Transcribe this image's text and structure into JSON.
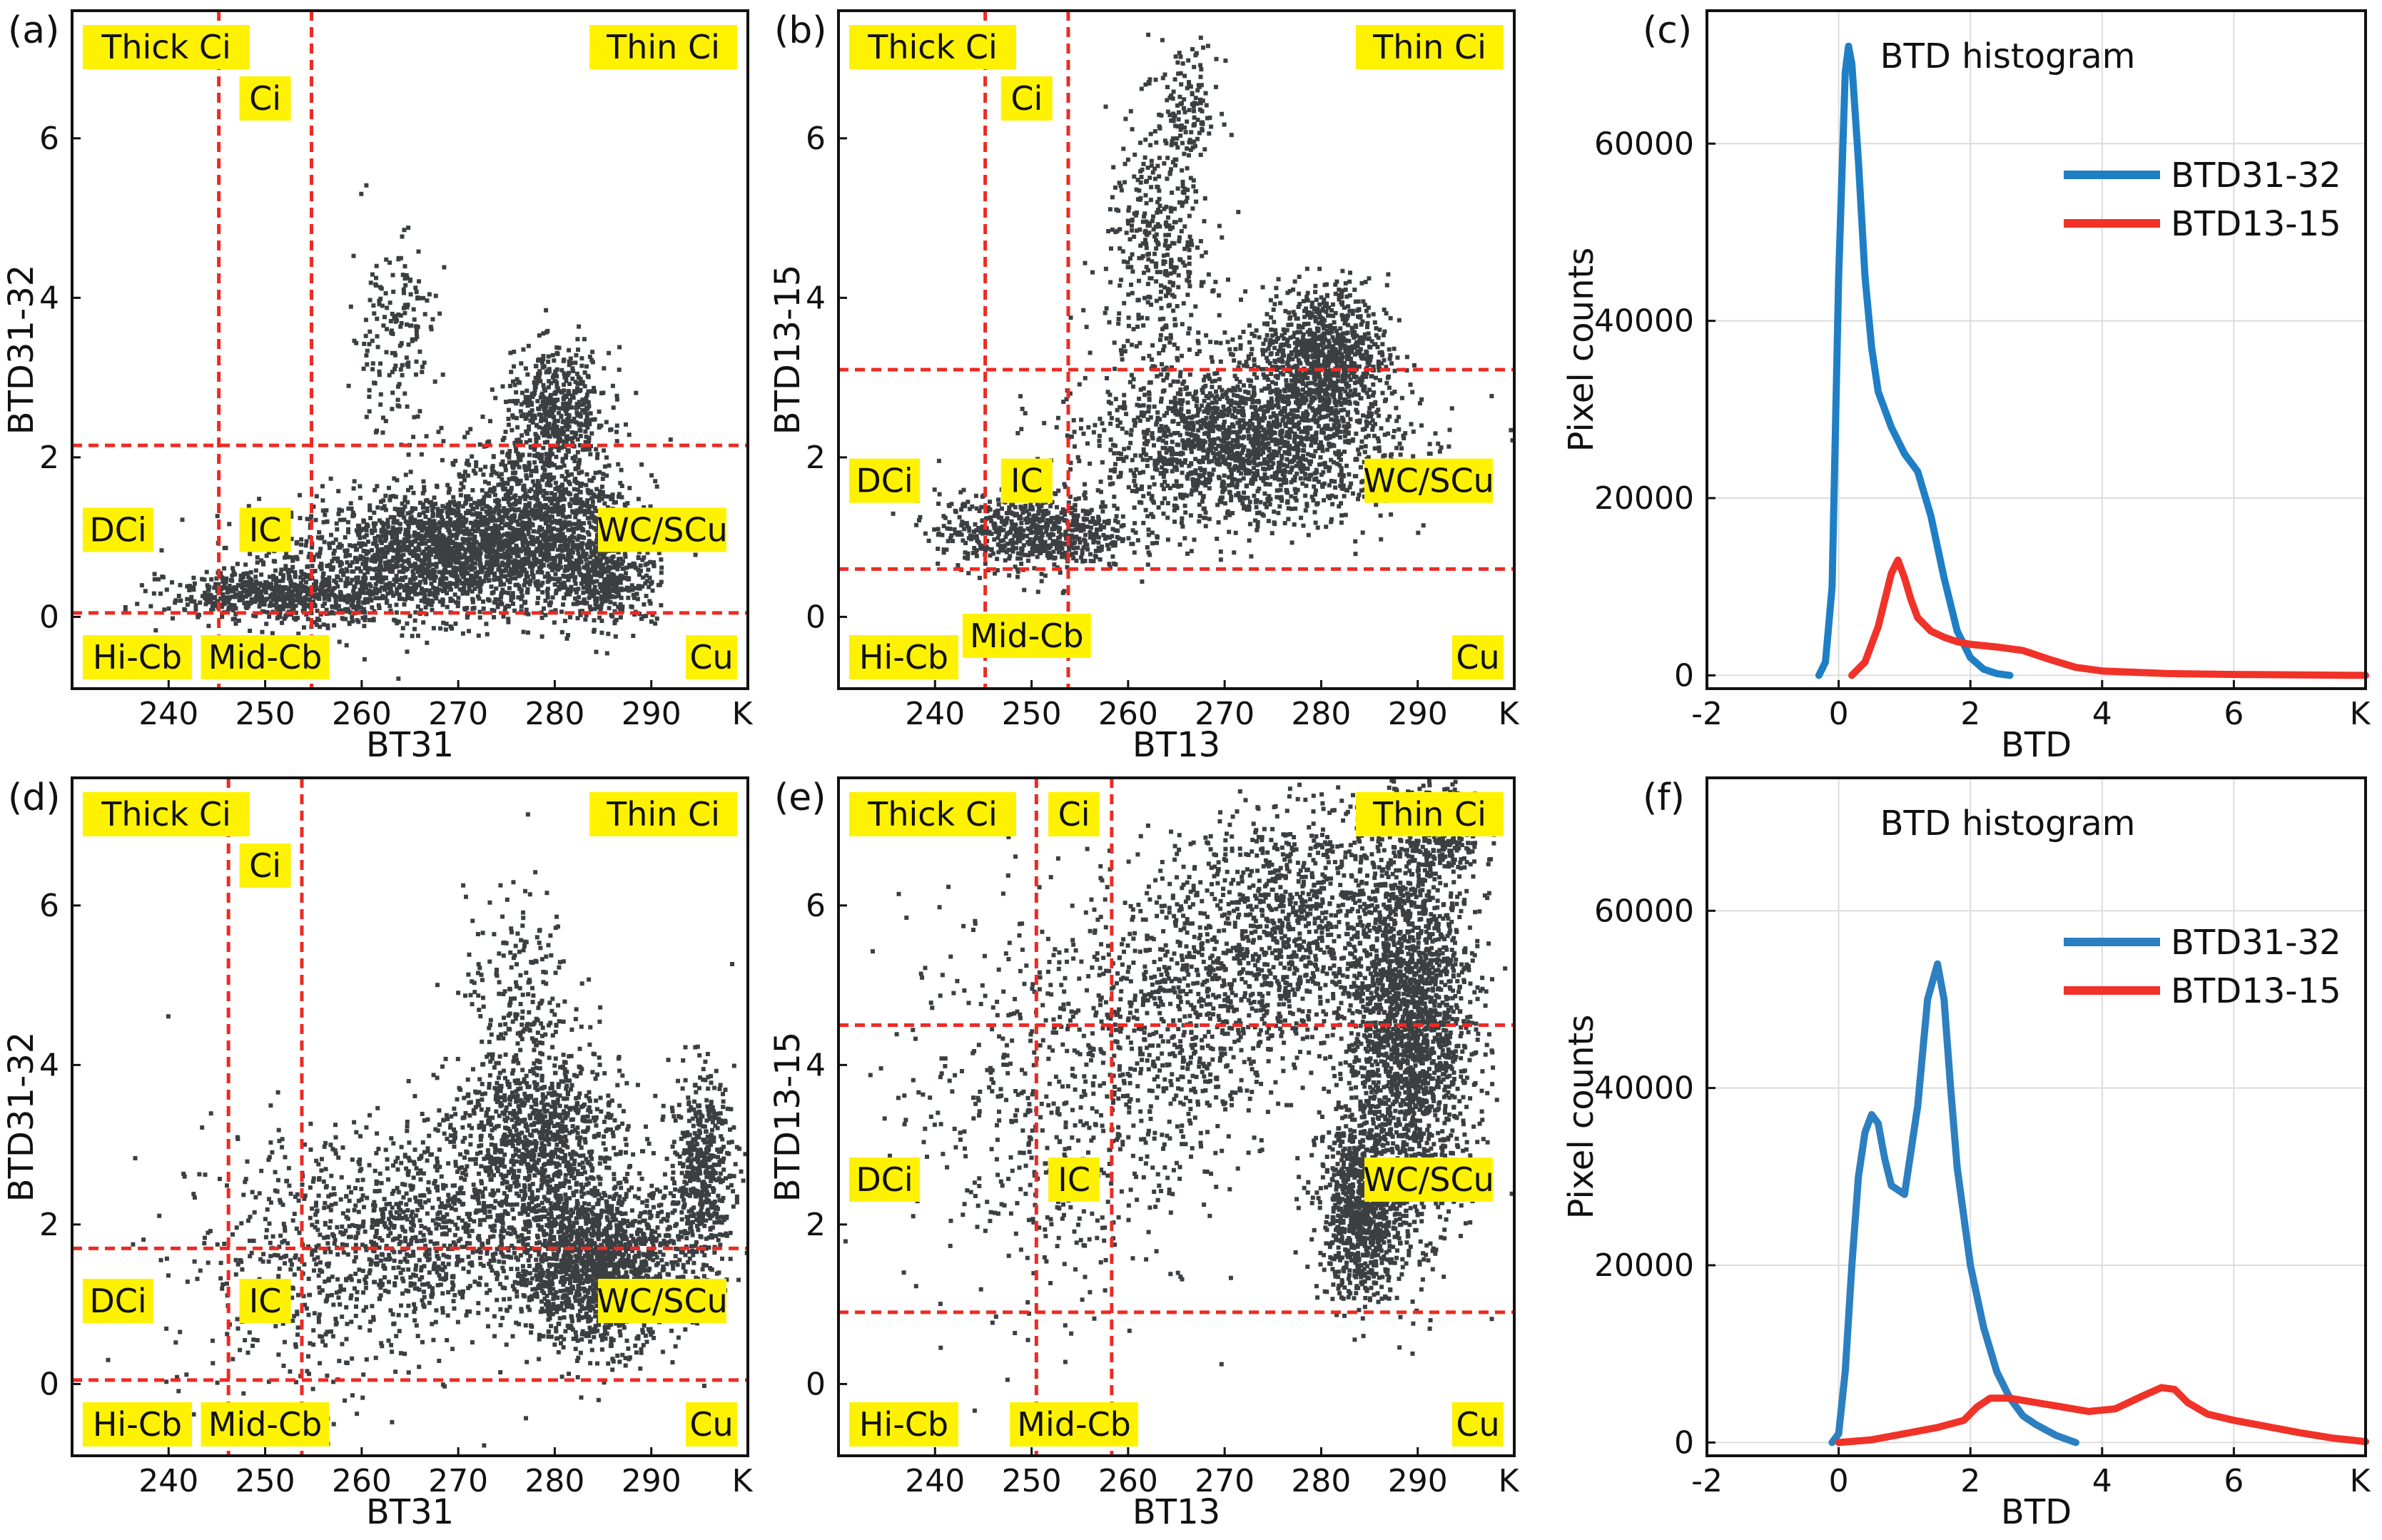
{
  "chart_data": [
    {
      "panel": "(a)",
      "type": "scatter",
      "xlabel": "BT31",
      "ylabel": "BTD31-32",
      "unit": "K",
      "xlim": [
        230,
        300
      ],
      "ylim": [
        -0.9,
        7.6
      ],
      "xticks": [
        "240",
        "250",
        "260",
        "270",
        "280",
        "290"
      ],
      "yticks": [
        "0",
        "2",
        "4",
        "6"
      ],
      "thresholds": {
        "bt_lo": 245.2,
        "bt_hi": 254.8,
        "btd_lo": 0.05,
        "btd_hi": 2.15
      },
      "regions": [
        "Thick Ci",
        "Ci",
        "Thin Ci",
        "DCi",
        "IC",
        "WC/SCu",
        "Hi-Cb",
        "Mid-Cb",
        "Cu"
      ],
      "cloud": {
        "blobs": [
          {
            "cx": 268,
            "cy": 0.8,
            "rx": 14,
            "ry": 0.7,
            "n": 1800
          },
          {
            "cx": 278,
            "cy": 1.3,
            "rx": 9,
            "ry": 0.9,
            "n": 1000
          },
          {
            "cx": 280,
            "cy": 2.6,
            "rx": 5,
            "ry": 0.7,
            "n": 500
          },
          {
            "cx": 252,
            "cy": 0.3,
            "rx": 11,
            "ry": 0.3,
            "n": 650
          },
          {
            "cx": 263,
            "cy": 3.6,
            "rx": 4,
            "ry": 1.1,
            "n": 170
          },
          {
            "cx": 285,
            "cy": 0.5,
            "rx": 5,
            "ry": 0.5,
            "n": 400
          }
        ]
      }
    },
    {
      "panel": "(b)",
      "type": "scatter",
      "xlabel": "BT13",
      "ylabel": "BTD13-15",
      "unit": "K",
      "xlim": [
        230,
        300
      ],
      "ylim": [
        -0.9,
        7.6
      ],
      "xticks": [
        "240",
        "250",
        "260",
        "270",
        "280",
        "290"
      ],
      "yticks": [
        "0",
        "2",
        "4",
        "6"
      ],
      "thresholds": {
        "bt_lo": 245.2,
        "bt_hi": 253.8,
        "btd_lo": 0.6,
        "btd_hi": 3.1
      },
      "regions": [
        "Thick Ci",
        "Ci",
        "Thin Ci",
        "DCi",
        "IC",
        "WC/SCu",
        "Hi-Cb",
        "Mid-Cb",
        "Cu"
      ],
      "cloud": {
        "blobs": [
          {
            "cx": 272,
            "cy": 2.2,
            "rx": 14,
            "ry": 0.9,
            "n": 1800
          },
          {
            "cx": 280,
            "cy": 3.3,
            "rx": 6,
            "ry": 0.8,
            "n": 900
          },
          {
            "cx": 250,
            "cy": 1.1,
            "rx": 9,
            "ry": 0.45,
            "n": 700
          },
          {
            "cx": 263,
            "cy": 4.6,
            "rx": 5,
            "ry": 1.5,
            "n": 400
          },
          {
            "cx": 266,
            "cy": 6.4,
            "rx": 3,
            "ry": 0.8,
            "n": 120
          }
        ]
      }
    },
    {
      "panel": "(c)",
      "type": "line",
      "title": "BTD histogram",
      "xlabel": "BTD",
      "ylabel": "Pixel counts",
      "unit": "K",
      "xlim": [
        -2,
        8
      ],
      "ylim": [
        -1500,
        75000
      ],
      "xticks": [
        "-2",
        "0",
        "2",
        "4",
        "6"
      ],
      "yticks": [
        "0",
        "20000",
        "40000",
        "60000"
      ],
      "legend": "right",
      "series": [
        {
          "name": "BTD31-32",
          "color": "#1f7fc6",
          "x": [
            -0.3,
            -0.2,
            -0.1,
            0,
            0.1,
            0.15,
            0.2,
            0.3,
            0.4,
            0.5,
            0.6,
            0.8,
            1.0,
            1.2,
            1.4,
            1.6,
            1.8,
            2.0,
            2.2,
            2.4,
            2.6
          ],
          "y": [
            0,
            1500,
            10000,
            45000,
            68000,
            71000,
            69000,
            58000,
            45000,
            37000,
            32000,
            28000,
            25000,
            23000,
            18000,
            11000,
            5000,
            2000,
            700,
            200,
            0
          ]
        },
        {
          "name": "BTD13-15",
          "color": "#f03228",
          "x": [
            0.2,
            0.4,
            0.6,
            0.8,
            0.9,
            1.0,
            1.1,
            1.2,
            1.4,
            1.6,
            1.8,
            2.0,
            2.4,
            2.8,
            3.2,
            3.6,
            4.0,
            5.0,
            6.0,
            8.0
          ],
          "y": [
            0,
            1500,
            5500,
            11500,
            13000,
            11000,
            8500,
            6500,
            5000,
            4300,
            3800,
            3500,
            3200,
            2800,
            1800,
            900,
            500,
            200,
            100,
            0
          ]
        }
      ]
    },
    {
      "panel": "(d)",
      "type": "scatter",
      "xlabel": "BT31",
      "ylabel": "BTD31-32",
      "unit": "K",
      "xlim": [
        230,
        300
      ],
      "ylim": [
        -0.9,
        7.6
      ],
      "xticks": [
        "240",
        "250",
        "260",
        "270",
        "280",
        "290"
      ],
      "yticks": [
        "0",
        "2",
        "4",
        "6"
      ],
      "thresholds": {
        "bt_lo": 246.2,
        "bt_hi": 253.8,
        "btd_lo": 0.05,
        "btd_hi": 1.7
      },
      "regions": [
        "Thick Ci",
        "Ci",
        "Thin Ci",
        "DCi",
        "IC",
        "WC/SCu",
        "Hi-Cb",
        "Mid-Cb",
        "Cu"
      ],
      "cloud": {
        "blobs": [
          {
            "cx": 284,
            "cy": 1.5,
            "rx": 8,
            "ry": 0.9,
            "n": 1600
          },
          {
            "cx": 278,
            "cy": 3.1,
            "rx": 8,
            "ry": 1.1,
            "n": 1000
          },
          {
            "cx": 295,
            "cy": 2.7,
            "rx": 3,
            "ry": 1.1,
            "n": 500
          },
          {
            "cx": 266,
            "cy": 2.0,
            "rx": 11,
            "ry": 1.2,
            "n": 700
          },
          {
            "cx": 255,
            "cy": 1.5,
            "rx": 14,
            "ry": 1.6,
            "n": 450
          },
          {
            "cx": 276,
            "cy": 5.0,
            "rx": 5,
            "ry": 1.1,
            "n": 180
          }
        ]
      }
    },
    {
      "panel": "(e)",
      "type": "scatter",
      "xlabel": "BT13",
      "ylabel": "BTD13-15",
      "unit": "K",
      "xlim": [
        230,
        300
      ],
      "ylim": [
        -0.9,
        7.6
      ],
      "xticks": [
        "240",
        "250",
        "260",
        "270",
        "280",
        "290"
      ],
      "yticks": [
        "0",
        "2",
        "4",
        "6"
      ],
      "thresholds": {
        "bt_lo": 250.5,
        "bt_hi": 258.3,
        "btd_lo": 0.9,
        "btd_hi": 4.5
      },
      "regions": [
        "Thick Ci",
        "Ci",
        "Thin Ci",
        "DCi",
        "IC",
        "WC/SCu",
        "Hi-Cb",
        "Mid-Cb",
        "Cu"
      ],
      "cloud": {
        "blobs": [
          {
            "cx": 289,
            "cy": 4.5,
            "rx": 6,
            "ry": 2.2,
            "n": 2200
          },
          {
            "cx": 284,
            "cy": 2.2,
            "rx": 4,
            "ry": 1.0,
            "n": 900
          },
          {
            "cx": 277,
            "cy": 5.8,
            "rx": 9,
            "ry": 1.5,
            "n": 900
          },
          {
            "cx": 266,
            "cy": 4.8,
            "rx": 10,
            "ry": 1.8,
            "n": 700
          },
          {
            "cx": 252,
            "cy": 3.5,
            "rx": 14,
            "ry": 2.3,
            "n": 600
          },
          {
            "cx": 292,
            "cy": 7.0,
            "rx": 4,
            "ry": 0.6,
            "n": 300
          }
        ]
      }
    },
    {
      "panel": "(f)",
      "type": "line",
      "title": "BTD histogram",
      "xlabel": "BTD",
      "ylabel": "Pixel counts",
      "unit": "K",
      "xlim": [
        -2,
        8
      ],
      "ylim": [
        -1500,
        75000
      ],
      "xticks": [
        "-2",
        "0",
        "2",
        "4",
        "6"
      ],
      "yticks": [
        "0",
        "20000",
        "40000",
        "60000"
      ],
      "legend": "right",
      "series": [
        {
          "name": "BTD31-32",
          "color": "#2c7fc0",
          "x": [
            -0.1,
            0,
            0.1,
            0.2,
            0.3,
            0.4,
            0.5,
            0.6,
            0.7,
            0.8,
            1.0,
            1.2,
            1.35,
            1.5,
            1.6,
            1.7,
            1.8,
            2.0,
            2.2,
            2.4,
            2.6,
            2.8,
            3.0,
            3.3,
            3.6
          ],
          "y": [
            0,
            1000,
            8000,
            20000,
            30000,
            35000,
            37000,
            36000,
            32000,
            29000,
            28000,
            38000,
            50000,
            54000,
            50000,
            40000,
            31000,
            20000,
            13000,
            8000,
            5000,
            3000,
            2000,
            800,
            0
          ]
        },
        {
          "name": "BTD13-15",
          "color": "#f03228",
          "x": [
            0,
            0.5,
            1.0,
            1.5,
            1.9,
            2.1,
            2.3,
            2.6,
            3.0,
            3.4,
            3.8,
            4.2,
            4.6,
            4.9,
            5.1,
            5.3,
            5.6,
            6.0,
            6.5,
            7.0,
            7.5,
            8.0
          ],
          "y": [
            0,
            300,
            1000,
            1700,
            2500,
            4000,
            5000,
            5000,
            4500,
            4000,
            3500,
            3800,
            5200,
            6200,
            6000,
            4500,
            3200,
            2500,
            1800,
            1100,
            500,
            100
          ]
        }
      ]
    }
  ]
}
